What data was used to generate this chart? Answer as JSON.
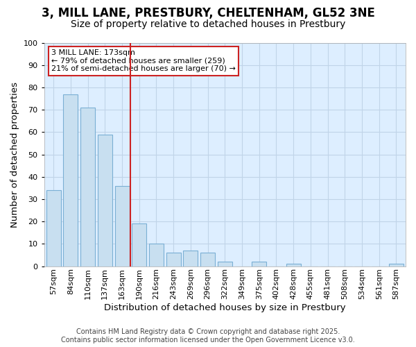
{
  "title_line1": "3, MILL LANE, PRESTBURY, CHELTENHAM, GL52 3NE",
  "title_line2": "Size of property relative to detached houses in Prestbury",
  "xlabel": "Distribution of detached houses by size in Prestbury",
  "ylabel": "Number of detached properties",
  "categories": [
    "57sqm",
    "84sqm",
    "110sqm",
    "137sqm",
    "163sqm",
    "190sqm",
    "216sqm",
    "243sqm",
    "269sqm",
    "296sqm",
    "322sqm",
    "349sqm",
    "375sqm",
    "402sqm",
    "428sqm",
    "455sqm",
    "481sqm",
    "508sqm",
    "534sqm",
    "561sqm",
    "587sqm"
  ],
  "values": [
    34,
    77,
    71,
    59,
    36,
    19,
    10,
    6,
    7,
    6,
    2,
    0,
    2,
    0,
    1,
    0,
    0,
    0,
    0,
    0,
    1
  ],
  "bar_color": "#c8dff0",
  "bar_edge_color": "#7aafd4",
  "vline_x": 4.5,
  "vline_color": "#cc2222",
  "marker_label": "3 MILL LANE: 173sqm",
  "annotation_line1": "← 79% of detached houses are smaller (259)",
  "annotation_line2": "21% of semi-detached houses are larger (70) →",
  "annotation_box_edge_color": "#cc2222",
  "plot_bg_color": "#ddeeff",
  "fig_bg_color": "#ffffff",
  "grid_color": "#c0d4e8",
  "footer_line1": "Contains HM Land Registry data © Crown copyright and database right 2025.",
  "footer_line2": "Contains public sector information licensed under the Open Government Licence v3.0.",
  "ylim_max": 100,
  "title_fontsize": 12,
  "subtitle_fontsize": 10,
  "axis_label_fontsize": 9.5,
  "tick_fontsize": 8,
  "annotation_fontsize": 8,
  "footer_fontsize": 7
}
